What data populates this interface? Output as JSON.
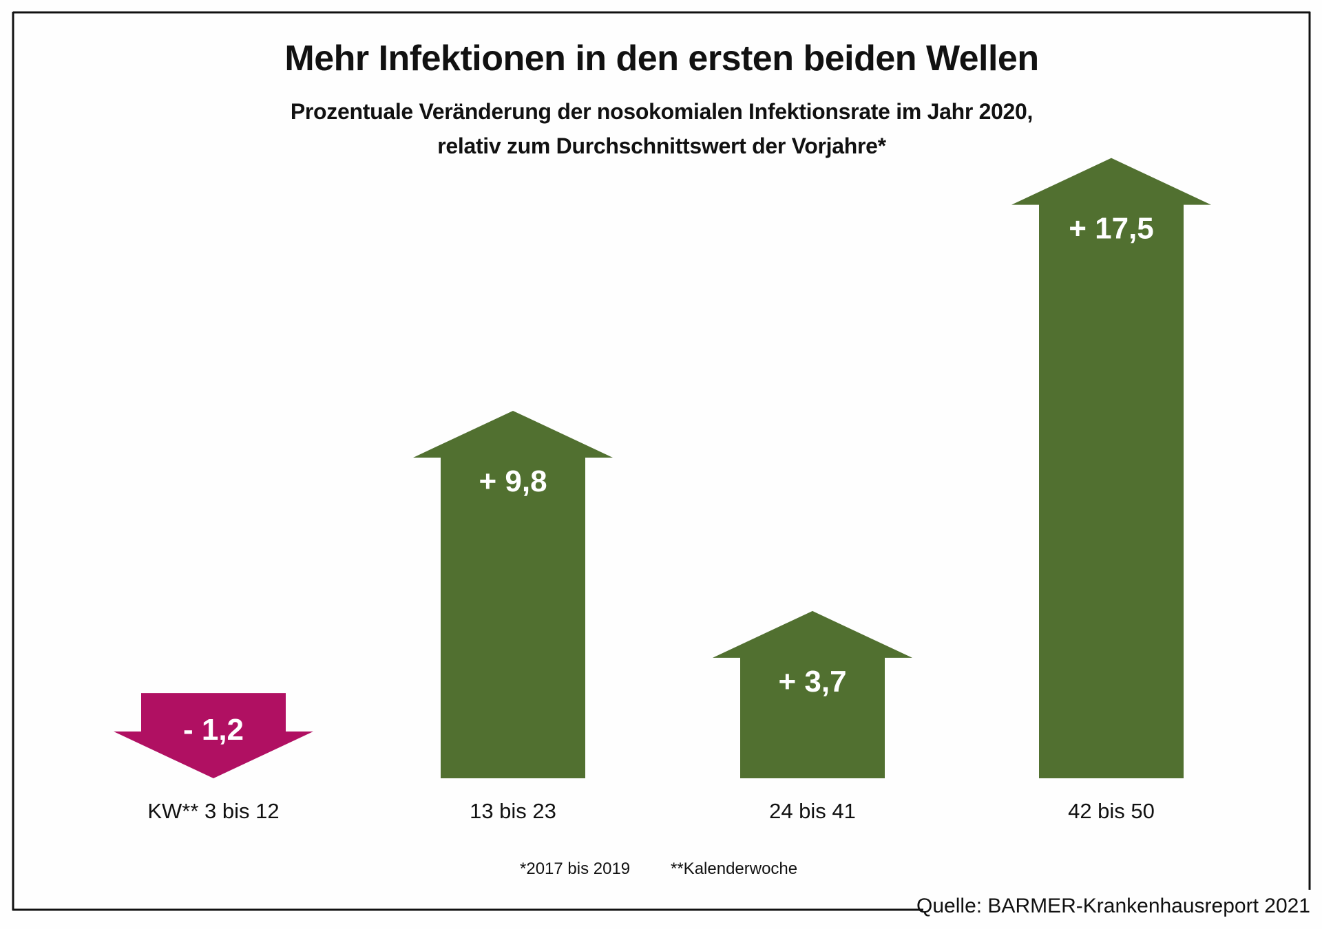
{
  "chart_data": {
    "type": "bar",
    "title": "Mehr Infektionen in den ersten beiden Wellen",
    "subtitle_lines": [
      "Prozentuale Veränderung der nosokomialen Infektionsrate im Jahr 2020,",
      "relativ zum Durchschnittswert der Vorjahre*"
    ],
    "categories": [
      "KW** 3 bis 12",
      "13 bis 23",
      "24 bis 41",
      "42 bis 50"
    ],
    "values": [
      -1.2,
      9.8,
      3.7,
      17.5
    ],
    "value_labels": [
      "- 1,2",
      "+ 9,8",
      "+ 3,7",
      "+ 17,5"
    ],
    "xlabel": "",
    "ylabel": "",
    "grid": false,
    "legend": "none",
    "mark_style": "arrow",
    "colors": {
      "positive": "#517030",
      "negative": "#b01062"
    },
    "footnotes": [
      "*2017 bis 2019",
      "**Kalenderwoche"
    ],
    "source": "Quelle: BARMER-Krankenhausreport 2021"
  }
}
